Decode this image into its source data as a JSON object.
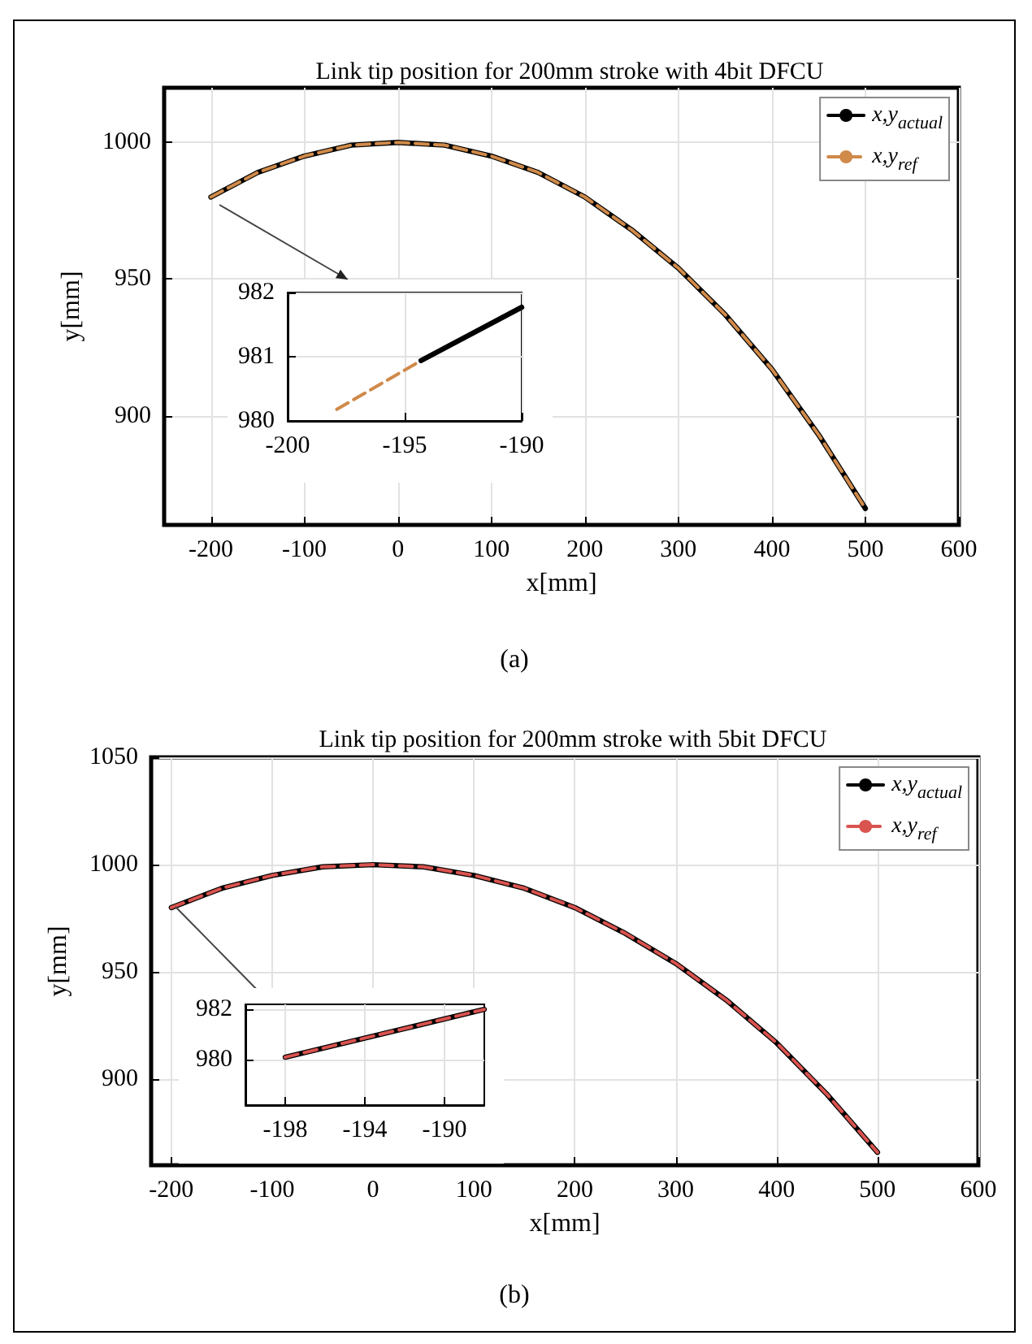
{
  "chart_data": [
    {
      "type": "line",
      "title": "Link tip position for 200mm stroke with 4bit DFCU",
      "xlabel": "x[mm]",
      "ylabel": "y[mm]",
      "annotations": [
        "(a)"
      ],
      "x": [
        -200,
        -150,
        -100,
        -50,
        0,
        50,
        100,
        150,
        200,
        250,
        300,
        350,
        400,
        450,
        500
      ],
      "series": [
        {
          "name": "x,y$_{actual}$",
          "color": "#000000",
          "line_style": "solid",
          "values": [
            980,
            989,
            995,
            999,
            1000,
            999,
            995,
            989,
            980,
            968,
            954,
            937,
            917,
            893,
            866
          ]
        },
        {
          "name": "x,y$_{ref}$",
          "color": "#d08a4a",
          "line_style": "dashed",
          "values": [
            980,
            989,
            995,
            999,
            1000,
            999,
            995,
            989,
            980,
            968,
            954,
            937,
            917,
            893,
            866
          ]
        }
      ],
      "xlim": [
        -250,
        600
      ],
      "xticks": [
        -200,
        -100,
        0,
        100,
        200,
        300,
        400,
        500,
        600
      ],
      "ylim": [
        860,
        1020
      ],
      "yticks": [
        900,
        950,
        1000
      ],
      "grid": true,
      "legend": "top right",
      "marker": "none"
    },
    {
      "type": "line",
      "series": [
        {
          "color": "#000000",
          "line_style": "solid",
          "x": [
            -194.3,
            -190
          ],
          "values": [
            980.94,
            981.77
          ]
        },
        {
          "color": "#d08a4a",
          "line_style": "dashed",
          "x": [
            -197.9,
            -194.3
          ],
          "values": [
            980.18,
            980.94
          ]
        }
      ],
      "xlim": [
        -200,
        -190
      ],
      "xticks": [
        -200,
        -195,
        -190
      ],
      "ylim": [
        980,
        982
      ],
      "yticks": [
        980,
        981,
        982
      ],
      "grid": true,
      "marker": "none"
    },
    {
      "type": "line",
      "title": "Link tip position for 200mm stroke with 5bit DFCU",
      "xlabel": "x[mm]",
      "ylabel": "y[mm]",
      "annotations": [
        "(b)"
      ],
      "x": [
        -200,
        -150,
        -100,
        -50,
        0,
        50,
        100,
        150,
        200,
        250,
        300,
        350,
        400,
        450,
        500
      ],
      "series": [
        {
          "name": "x,y$_{actual}$",
          "color": "#000000",
          "line_style": "solid",
          "values": [
            980,
            989,
            995,
            999,
            1000,
            999,
            995,
            989,
            980,
            968,
            954,
            937,
            917,
            893,
            866
          ]
        },
        {
          "name": "x,y$_{ref}$",
          "color": "#d9534f",
          "line_style": "dashed",
          "values": [
            980,
            989,
            995,
            999,
            1000,
            999,
            995,
            989,
            980,
            968,
            954,
            937,
            917,
            893,
            866
          ]
        }
      ],
      "xlim": [
        -220,
        600
      ],
      "xticks": [
        -200,
        -100,
        0,
        100,
        200,
        300,
        400,
        500,
        600
      ],
      "ylim": [
        860,
        1050
      ],
      "yticks": [
        900,
        950,
        1000,
        1050
      ],
      "grid": true,
      "legend": "top right",
      "marker": "none"
    },
    {
      "type": "line",
      "series": [
        {
          "color": "#000000",
          "line_style": "solid",
          "values": [
            980.1,
            982
          ]
        },
        {
          "color": "#d9534f",
          "line_style": "dashed",
          "values": [
            980.1,
            982
          ]
        }
      ],
      "x": [
        -198,
        -188
      ],
      "xlim": [
        -200,
        -188
      ],
      "xticks": [
        -198,
        -194,
        -190
      ],
      "ylim": [
        978.2,
        982.2
      ],
      "yticks": [
        980,
        982
      ],
      "grid": true,
      "marker": "none"
    }
  ]
}
